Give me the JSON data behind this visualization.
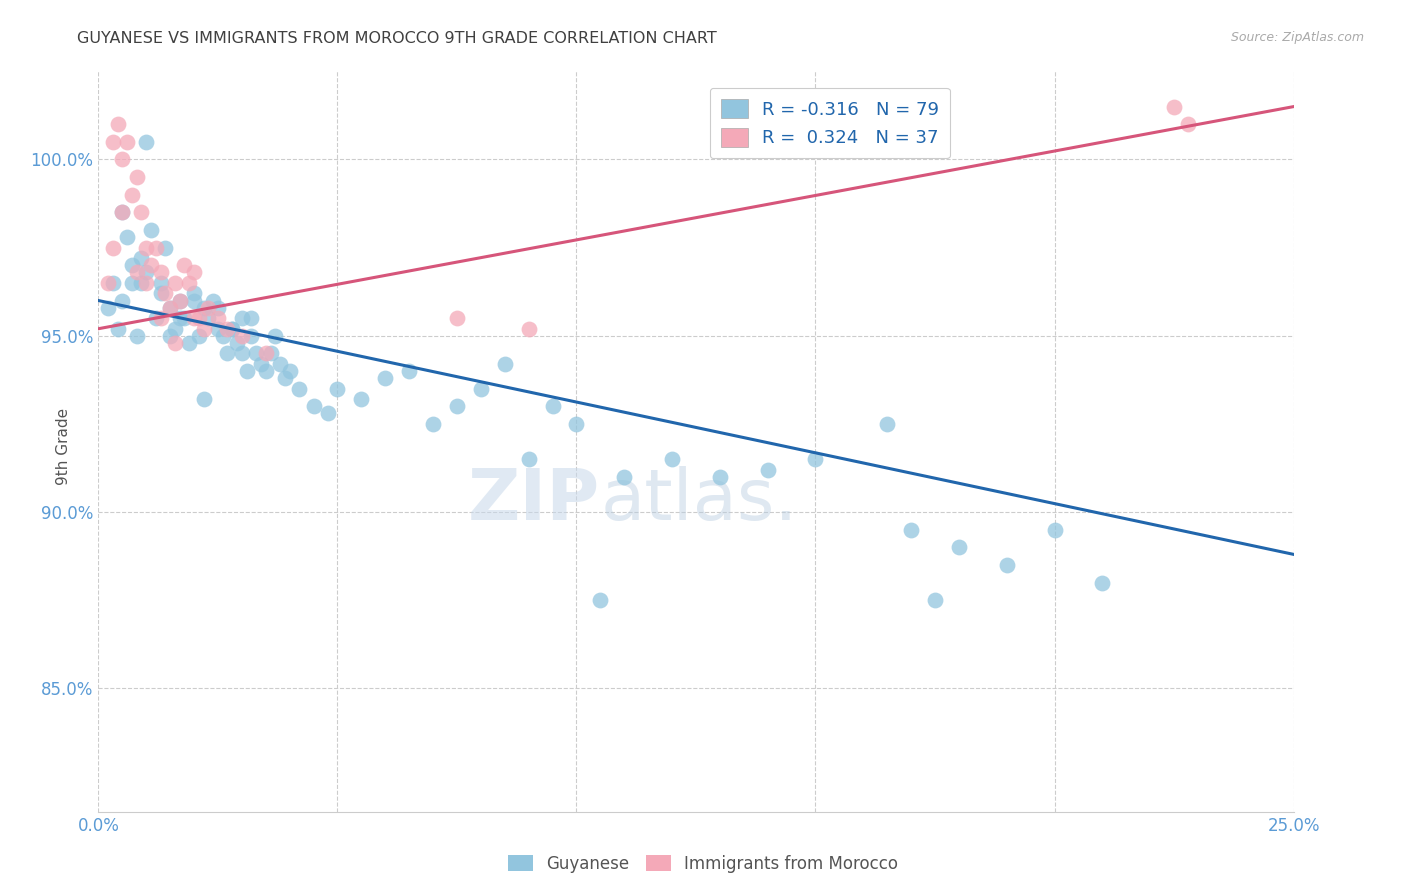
{
  "title": "GUYANESE VS IMMIGRANTS FROM MOROCCO 9TH GRADE CORRELATION CHART",
  "source": "Source: ZipAtlas.com",
  "ylabel": "9th Grade",
  "xlim": [
    0.0,
    25.0
  ],
  "ylim": [
    81.5,
    102.5
  ],
  "yticks": [
    85.0,
    90.0,
    95.0,
    100.0
  ],
  "ytick_labels": [
    "85.0%",
    "90.0%",
    "95.0%",
    "100.0%"
  ],
  "legend_blue_label": "Guyanese",
  "legend_pink_label": "Immigrants from Morocco",
  "R_blue": -0.316,
  "N_blue": 79,
  "R_pink": 0.324,
  "N_pink": 37,
  "blue_color": "#92c5de",
  "pink_color": "#f4a9b8",
  "blue_line_color": "#2166ac",
  "pink_line_color": "#d6557a",
  "title_color": "#404040",
  "axis_color": "#5b9bd5",
  "watermark_zip": "ZIP",
  "watermark_atlas": "atlas.",
  "blue_trend_x0": 0.0,
  "blue_trend_y0": 96.0,
  "blue_trend_x1": 25.0,
  "blue_trend_y1": 88.8,
  "pink_trend_x0": 0.0,
  "pink_trend_y0": 95.2,
  "pink_trend_x1": 25.0,
  "pink_trend_y1": 101.5,
  "blue_scatter_x": [
    0.2,
    0.3,
    0.4,
    0.5,
    0.6,
    0.7,
    0.8,
    0.9,
    1.0,
    1.0,
    1.1,
    1.2,
    1.3,
    1.4,
    1.5,
    1.6,
    1.7,
    1.8,
    1.9,
    2.0,
    2.1,
    2.2,
    2.3,
    2.4,
    2.5,
    2.6,
    2.7,
    2.8,
    2.9,
    3.0,
    3.1,
    3.2,
    3.3,
    3.4,
    3.5,
    3.6,
    3.7,
    3.8,
    3.9,
    4.0,
    4.2,
    4.5,
    4.8,
    5.0,
    5.5,
    6.0,
    6.5,
    7.0,
    7.5,
    8.0,
    8.5,
    9.0,
    9.5,
    10.0,
    10.5,
    11.0,
    12.0,
    13.0,
    14.0,
    15.0,
    16.5,
    17.0,
    18.0,
    19.0,
    20.0,
    21.0,
    2.2,
    2.5,
    2.8,
    3.0,
    3.2,
    1.3,
    1.5,
    1.7,
    2.0,
    0.5,
    0.7,
    0.9,
    17.5
  ],
  "blue_scatter_y": [
    95.8,
    96.5,
    95.2,
    96.0,
    97.8,
    96.5,
    95.0,
    97.2,
    96.8,
    100.5,
    98.0,
    95.5,
    96.2,
    97.5,
    95.8,
    95.2,
    96.0,
    95.5,
    94.8,
    96.2,
    95.0,
    95.8,
    95.5,
    96.0,
    95.2,
    95.0,
    94.5,
    95.2,
    94.8,
    94.5,
    94.0,
    95.5,
    94.5,
    94.2,
    94.0,
    94.5,
    95.0,
    94.2,
    93.8,
    94.0,
    93.5,
    93.0,
    92.8,
    93.5,
    93.2,
    93.8,
    94.0,
    92.5,
    93.0,
    93.5,
    94.2,
    91.5,
    93.0,
    92.5,
    87.5,
    91.0,
    91.5,
    91.0,
    91.2,
    91.5,
    92.5,
    89.5,
    89.0,
    88.5,
    89.5,
    88.0,
    93.2,
    95.8,
    95.2,
    95.5,
    95.0,
    96.5,
    95.0,
    95.5,
    96.0,
    98.5,
    97.0,
    96.5,
    87.5
  ],
  "pink_scatter_x": [
    0.2,
    0.3,
    0.4,
    0.5,
    0.6,
    0.7,
    0.8,
    0.9,
    1.0,
    1.1,
    1.2,
    1.3,
    1.4,
    1.5,
    1.6,
    1.7,
    1.8,
    1.9,
    2.0,
    2.1,
    2.2,
    2.3,
    2.5,
    2.7,
    3.0,
    3.5,
    0.3,
    0.5,
    0.8,
    1.0,
    1.3,
    1.6,
    2.0,
    7.5,
    22.5,
    22.8,
    9.0
  ],
  "pink_scatter_y": [
    96.5,
    100.5,
    101.0,
    100.0,
    100.5,
    99.0,
    99.5,
    98.5,
    97.5,
    97.0,
    97.5,
    96.8,
    96.2,
    95.8,
    96.5,
    96.0,
    97.0,
    96.5,
    96.8,
    95.5,
    95.2,
    95.8,
    95.5,
    95.2,
    95.0,
    94.5,
    97.5,
    98.5,
    96.8,
    96.5,
    95.5,
    94.8,
    95.5,
    95.5,
    101.5,
    101.0,
    95.2
  ]
}
